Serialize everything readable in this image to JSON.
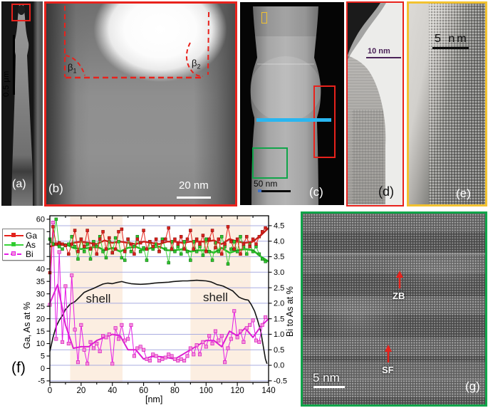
{
  "colors": {
    "red": "#e8221c",
    "yellow": "#f2c230",
    "green": "#10a54a",
    "cyan": "#29b6f0",
    "purple": "#4a2258",
    "grid": "#a9ace0",
    "shade": "#fceee1"
  },
  "figure": {
    "panels": {
      "a": {
        "label": "(a)",
        "scalebar": "0.5 μm"
      },
      "b": {
        "label": "(b)",
        "scalebar": "20 nm",
        "beta1_base": "β",
        "beta1_sub": "1",
        "beta2_base": "β",
        "beta2_sub": "2"
      },
      "c": {
        "label": "(c)",
        "scalebar": "50 nm"
      },
      "d": {
        "label": "(d)",
        "scalebar": "10 nm"
      },
      "e": {
        "label": "(e)",
        "scalebar": "5 nm"
      },
      "f": {
        "label": "(f)"
      },
      "g": {
        "label": "(g)",
        "scalebar": "5 nm",
        "zb": "ZB",
        "sf": "SF"
      }
    }
  },
  "chart_data": {
    "type": "line",
    "x_label": "[nm]",
    "y_left_label": "Ga, As at %",
    "y_right_label": "Bi to As at %",
    "x_range": [
      0,
      140
    ],
    "y_left_range": [
      -5.6,
      61.4
    ],
    "y_right_range": [
      -0.55,
      4.82
    ],
    "x_ticks": [
      0,
      20,
      40,
      60,
      80,
      100,
      120,
      140
    ],
    "x_minor_step": 10,
    "y_left_ticks": [
      -5,
      0,
      5,
      10,
      15,
      20,
      25,
      30,
      35,
      40,
      45,
      50,
      55,
      60
    ],
    "y_right_ticks": [
      -0.5,
      0.0,
      0.5,
      1.0,
      1.5,
      2.0,
      2.5,
      3.0,
      3.5,
      4.0,
      4.5
    ],
    "grid": "horizontal gridlines at right-axis ticks",
    "shaded_regions": [
      [
        13,
        46.5
      ],
      [
        90,
        128.5
      ]
    ],
    "annotations": [
      {
        "text": "shell",
        "x": 31,
        "y_left": 26.5
      },
      {
        "text": "shell",
        "x": 106,
        "y_left": 27
      }
    ],
    "legend": [
      {
        "label": "Ga",
        "color": "#e8221c",
        "marker_fill": "#de231d",
        "dash": false
      },
      {
        "label": "As",
        "color": "#3ad43a",
        "marker_fill": "#2ec82e",
        "dash": false
      },
      {
        "label": "Bi",
        "color": "#e61ae6",
        "marker_fill": "#f492dc",
        "dash": true
      }
    ],
    "series": [
      {
        "name": "bi-to-as-ratio",
        "axis": "right",
        "color": "#141414",
        "width": 1.6,
        "x": [
          0,
          2,
          4,
          6,
          8,
          10,
          13,
          16,
          19,
          22,
          25,
          28,
          31,
          34,
          37,
          40,
          43,
          46,
          49,
          52,
          55,
          58,
          61,
          64,
          67,
          70,
          73,
          76,
          79,
          82,
          85,
          88,
          91,
          94,
          97,
          100,
          103,
          105,
          107,
          109,
          111,
          113,
          115,
          117,
          119,
          121,
          123,
          125,
          127,
          129,
          131,
          133,
          135,
          136,
          137,
          138,
          139
        ],
        "y": [
          0.45,
          0.9,
          1.25,
          1.45,
          1.6,
          1.8,
          1.97,
          2.05,
          2.2,
          2.35,
          2.42,
          2.48,
          2.55,
          2.62,
          2.65,
          2.63,
          2.67,
          2.7,
          2.66,
          2.63,
          2.62,
          2.61,
          2.62,
          2.63,
          2.65,
          2.66,
          2.67,
          2.68,
          2.7,
          2.71,
          2.72,
          2.72,
          2.73,
          2.74,
          2.73,
          2.72,
          2.69,
          2.65,
          2.6,
          2.58,
          2.55,
          2.5,
          2.45,
          2.4,
          2.3,
          2.2,
          2.15,
          2.12,
          2.1,
          1.95,
          1.75,
          1.45,
          1.1,
          0.8,
          0.5,
          0.2,
          0.05
        ]
      },
      {
        "name": "bi-smooth",
        "axis": "right",
        "color": "#dc1fd0",
        "width": 2,
        "x_start": 0,
        "x_step": 5,
        "y": [
          2.0,
          2.6,
          1.3,
          0.55,
          0.6,
          0.6,
          0.8,
          0.9,
          1.0,
          0.95,
          0.5,
          0.5,
          0.2,
          0.28,
          0.28,
          0.25,
          0.2,
          0.35,
          0.5,
          0.65,
          0.8,
          0.8,
          0.6,
          1.1,
          0.95,
          1.2,
          0.9,
          1.25,
          1.5
        ]
      },
      {
        "name": "bi-raw",
        "axis": "right",
        "color": "#e61ae6",
        "width": 1,
        "marker": true,
        "marker_fill": "#f492dc",
        "marker_stroke": "#d81bbd",
        "marker_size": 4.4,
        "x_start": 0,
        "x_step": 2,
        "y": [
          1.95,
          4.6,
          0.85,
          3.65,
          0.75,
          2.55,
          0.7,
          2.9,
          1.15,
          0.1,
          1.3,
          0.5,
          0.05,
          0.75,
          0.55,
          0.7,
          0.45,
          0.95,
          0.9,
          1.0,
          0.05,
          1.2,
          0.85,
          1.3,
          0.8,
          0.85,
          1.3,
          0.3,
          0.55,
          0.6,
          0.5,
          0.2,
          0.15,
          0.35,
          0.3,
          0.15,
          0.2,
          0.25,
          0.35,
          0.3,
          0.2,
          0.15,
          0.2,
          0.15,
          0.3,
          0.55,
          0.35,
          0.65,
          0.35,
          0.75,
          0.6,
          0.95,
          0.7,
          1.1,
          0.8,
          0.95,
          0.1,
          0.55,
          0.85,
          1.75,
          0.9,
          1.1,
          0.75,
          1.2,
          1.3,
          1.45,
          0.8,
          0.75,
          1.3,
          1.55
        ]
      },
      {
        "name": "as-smooth",
        "axis": "left",
        "color": "#28bc28",
        "width": 2.6,
        "x_start": 0,
        "x_step": 5,
        "y": [
          51,
          49.5,
          50,
          48.5,
          48,
          48.5,
          49,
          47.5,
          48.5,
          47,
          48.5,
          49,
          47.5,
          48.5,
          49,
          47.5,
          47.5,
          48,
          47,
          47.5,
          47.5,
          46.5,
          48.5,
          46.5,
          47.5,
          48,
          47.5,
          45,
          43
        ]
      },
      {
        "name": "ga-smooth",
        "axis": "left",
        "color": "#cc1f19",
        "width": 2.4,
        "x_start": 0,
        "x_step": 5,
        "y": [
          49,
          50,
          49.5,
          50.5,
          51,
          50.5,
          50,
          51.5,
          50.5,
          51,
          50.5,
          50,
          51,
          50.5,
          50,
          51,
          51,
          50.5,
          51,
          51,
          51,
          51.5,
          50,
          52,
          51,
          50.5,
          51,
          53.5,
          56.5
        ]
      },
      {
        "name": "as-raw",
        "axis": "left",
        "color": "#3ad43a",
        "width": 1,
        "marker": true,
        "marker_fill": "#2ec82e",
        "marker_stroke": "#157a15",
        "marker_size": 3.8,
        "x_start": 0,
        "x_step": 2,
        "y": [
          52,
          50,
          60,
          49,
          48,
          49.5,
          50,
          53,
          49,
          44,
          52,
          47,
          50,
          44,
          51,
          49,
          53,
          47,
          44.5,
          51,
          46.5,
          52.5,
          51,
          44.5,
          43.5,
          52,
          47,
          49,
          53,
          47,
          48.5,
          43.5,
          51,
          48,
          50,
          47,
          52,
          48,
          42.5,
          51,
          47,
          49,
          46,
          51,
          47,
          43.5,
          51,
          47,
          49,
          45.5,
          52,
          47,
          43.5,
          50.5,
          47,
          53,
          49,
          42,
          48,
          51,
          47,
          53,
          49,
          46,
          50,
          47,
          49,
          46,
          44,
          43
        ]
      },
      {
        "name": "ga-raw",
        "axis": "left",
        "color": "#e8221c",
        "width": 1,
        "marker": true,
        "marker_fill": "#de231d",
        "marker_stroke": "#8f1310",
        "marker_size": 3.8,
        "x_start": 0,
        "x_step": 2,
        "y": [
          38.5,
          57,
          50,
          50.5,
          50,
          49.5,
          46,
          50,
          55.5,
          47,
          52,
          49,
          55.5,
          48,
          50,
          46,
          52,
          55,
          48,
          52.5,
          46.5,
          48,
          55,
          56,
          47,
          52,
          50,
          46,
          52,
          50.5,
          55.5,
          48,
          51,
          49,
          52,
          47,
          51,
          52,
          56.5,
          48,
          52,
          50,
          53,
          48,
          52,
          55.5,
          48,
          52,
          50,
          53.5,
          47,
          52,
          55.5,
          48.5,
          52,
          46,
          50,
          57,
          51,
          48,
          52,
          46,
          50,
          53,
          49,
          52,
          50,
          53,
          55,
          56.5
        ]
      }
    ]
  }
}
